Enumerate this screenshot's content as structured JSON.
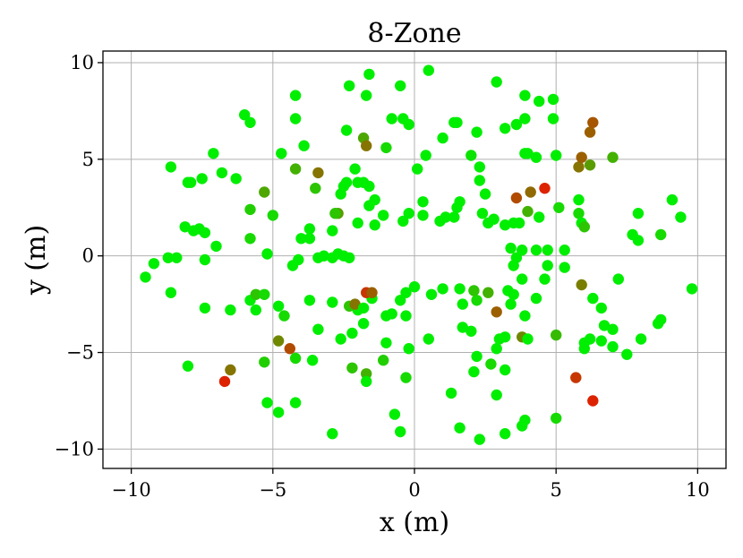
{
  "chart_data": {
    "type": "scatter",
    "title": "8-Zone",
    "xlabel": "x (m)",
    "ylabel": "y (m)",
    "xlim": [
      -11,
      11
    ],
    "ylim": [
      -11,
      10.6
    ],
    "xticks": [
      -10,
      -5,
      0,
      5,
      10
    ],
    "yticks": [
      -10,
      -5,
      0,
      5,
      10
    ],
    "xtick_labels": [
      "−10",
      "−5",
      "0",
      "5",
      "10"
    ],
    "ytick_labels": [
      "−10",
      "−5",
      "0",
      "5",
      "10"
    ],
    "grid": true,
    "color_scale": {
      "low": "#00ee00",
      "high": "#dd2200"
    },
    "points": [
      [
        -9.5,
        -1.1,
        0
      ],
      [
        -9.2,
        -0.4,
        0
      ],
      [
        -8.7,
        -0.1,
        0
      ],
      [
        -8.4,
        -0.1,
        0
      ],
      [
        -8.6,
        -1.9,
        0
      ],
      [
        -8.6,
        4.6,
        0
      ],
      [
        -8.0,
        3.8,
        0
      ],
      [
        -7.9,
        3.8,
        0
      ],
      [
        -7.5,
        4.0,
        0
      ],
      [
        -7.1,
        5.3,
        0
      ],
      [
        -6.8,
        4.3,
        0
      ],
      [
        -6.3,
        4.0,
        0
      ],
      [
        -6.0,
        7.3,
        0
      ],
      [
        -5.8,
        6.9,
        0
      ],
      [
        -8.1,
        1.5,
        0
      ],
      [
        -7.8,
        1.3,
        0
      ],
      [
        -7.6,
        1.4,
        0
      ],
      [
        -7.4,
        1.2,
        0
      ],
      [
        -7.4,
        -0.2,
        0
      ],
      [
        -7.0,
        0.5,
        0
      ],
      [
        -7.4,
        -2.7,
        0
      ],
      [
        -8.0,
        -5.7,
        0
      ],
      [
        -6.5,
        -2.8,
        0
      ],
      [
        -5.8,
        -2.3,
        0
      ],
      [
        -5.6,
        -2.0,
        0.2
      ],
      [
        -5.3,
        -2.0,
        0.1
      ],
      [
        -5.6,
        -2.8,
        0
      ],
      [
        -5.8,
        0.9,
        0.1
      ],
      [
        -5.8,
        2.4,
        0.15
      ],
      [
        -5.3,
        3.3,
        0.35
      ],
      [
        -5.0,
        2.1,
        0.1
      ],
      [
        -5.2,
        0.1,
        0
      ],
      [
        -4.8,
        -2.6,
        0
      ],
      [
        -4.6,
        -3.1,
        0.1
      ],
      [
        -4.8,
        -4.4,
        0.5
      ],
      [
        -4.4,
        -4.8,
        0.8
      ],
      [
        -5.3,
        -5.5,
        0.15
      ],
      [
        -5.2,
        -7.6,
        0
      ],
      [
        -4.8,
        -8.1,
        0
      ],
      [
        -4.2,
        -7.6,
        0
      ],
      [
        -4.2,
        -5.3,
        0.1
      ],
      [
        -3.6,
        -5.4,
        0
      ],
      [
        -3.4,
        -3.8,
        0
      ],
      [
        -3.7,
        -2.3,
        0
      ],
      [
        -4.1,
        -0.2,
        0
      ],
      [
        -4.3,
        -0.5,
        0
      ],
      [
        -4.0,
        0.9,
        0
      ],
      [
        -3.7,
        0.9,
        0
      ],
      [
        -3.7,
        1.4,
        0
      ],
      [
        -3.4,
        -0.1,
        0
      ],
      [
        -3.2,
        0.0,
        0
      ],
      [
        -3.5,
        3.5,
        0.2
      ],
      [
        -3.4,
        4.3,
        0.6
      ],
      [
        -4.2,
        4.5,
        0.3
      ],
      [
        -3.9,
        5.7,
        0
      ],
      [
        -4.2,
        7.1,
        0
      ],
      [
        -4.2,
        8.3,
        0
      ],
      [
        -4.7,
        5.3,
        0
      ],
      [
        -2.9,
        -9.2,
        0
      ],
      [
        -2.6,
        -4.3,
        0
      ],
      [
        -2.2,
        -4.0,
        0
      ],
      [
        -2.2,
        -5.8,
        0.2
      ],
      [
        -1.7,
        -6.1,
        0.3
      ],
      [
        -1.7,
        -6.5,
        0
      ],
      [
        -1.1,
        -5.4,
        0.15
      ],
      [
        -1.0,
        -4.5,
        0
      ],
      [
        -0.7,
        -8.2,
        0
      ],
      [
        -0.5,
        -9.1,
        0
      ],
      [
        -0.3,
        -6.3,
        0.1
      ],
      [
        -0.8,
        -3.0,
        0
      ],
      [
        -0.3,
        -3.1,
        0
      ],
      [
        -1.0,
        -3.1,
        0
      ],
      [
        -1.5,
        -2.2,
        0
      ],
      [
        -2.0,
        -2.8,
        0
      ],
      [
        -2.3,
        -2.6,
        0.2
      ],
      [
        -2.1,
        -2.5,
        0.6
      ],
      [
        -1.7,
        -1.9,
        0.9
      ],
      [
        -1.5,
        -1.9,
        0.7
      ],
      [
        -1.8,
        -2.7,
        0
      ],
      [
        -1.8,
        -3.5,
        0
      ],
      [
        -2.9,
        -2.4,
        0
      ],
      [
        -2.9,
        -0.1,
        0
      ],
      [
        -2.7,
        0.1,
        0
      ],
      [
        -2.5,
        0.0,
        0
      ],
      [
        -2.3,
        -0.1,
        0
      ],
      [
        -2.0,
        1.7,
        0
      ],
      [
        -1.4,
        1.6,
        0
      ],
      [
        -1.6,
        2.6,
        0
      ],
      [
        -1.1,
        2.1,
        0
      ],
      [
        -2.9,
        1.3,
        0
      ],
      [
        -2.7,
        2.2,
        0.4
      ],
      [
        -2.8,
        2.2,
        0.2
      ],
      [
        -2.6,
        3.2,
        0
      ],
      [
        -2.4,
        3.8,
        0
      ],
      [
        -2.5,
        3.6,
        0
      ],
      [
        -2.0,
        3.8,
        0
      ],
      [
        -1.8,
        3.8,
        0
      ],
      [
        -1.6,
        3.6,
        0
      ],
      [
        -2.1,
        4.5,
        0
      ],
      [
        -1.4,
        2.9,
        0
      ],
      [
        -1.8,
        6.1,
        0.35
      ],
      [
        -1.7,
        5.7,
        0.6
      ],
      [
        -1.0,
        5.6,
        0.1
      ],
      [
        -2.4,
        6.5,
        0
      ],
      [
        -1.7,
        8.3,
        0
      ],
      [
        -1.6,
        9.4,
        0
      ],
      [
        -2.3,
        8.8,
        0
      ],
      [
        -0.5,
        8.8,
        0
      ],
      [
        -0.8,
        7.1,
        0
      ],
      [
        -0.4,
        7.1,
        0
      ],
      [
        -0.2,
        6.8,
        0
      ],
      [
        -0.2,
        2.2,
        0
      ],
      [
        0.3,
        2.1,
        0
      ],
      [
        -0.4,
        1.8,
        0
      ],
      [
        0.3,
        2.8,
        0
      ],
      [
        0.1,
        4.5,
        0
      ],
      [
        0.4,
        5.2,
        0
      ],
      [
        0.5,
        9.6,
        0
      ],
      [
        0.9,
        1.8,
        0
      ],
      [
        1.1,
        2.0,
        0
      ],
      [
        1.4,
        2.0,
        0
      ],
      [
        1.5,
        2.5,
        0
      ],
      [
        1.6,
        2.8,
        0
      ],
      [
        1.4,
        6.9,
        0
      ],
      [
        1.0,
        6.1,
        0
      ],
      [
        0.0,
        -1.6,
        0
      ],
      [
        -0.3,
        -1.9,
        0
      ],
      [
        -0.5,
        -2.3,
        0
      ],
      [
        -0.2,
        -4.8,
        0
      ],
      [
        0.5,
        -4.3,
        0
      ],
      [
        0.6,
        -2.0,
        0
      ],
      [
        1.0,
        -1.7,
        0
      ],
      [
        1.6,
        -1.7,
        0
      ],
      [
        1.7,
        -2.5,
        0
      ],
      [
        1.7,
        -3.7,
        0
      ],
      [
        2.0,
        -3.9,
        0
      ],
      [
        2.2,
        -2.3,
        0.1
      ],
      [
        2.1,
        -1.8,
        0.2
      ],
      [
        2.6,
        -1.9,
        0.3
      ],
      [
        2.2,
        -5.2,
        0
      ],
      [
        2.7,
        -5.6,
        0.1
      ],
      [
        2.9,
        -4.8,
        0
      ],
      [
        2.1,
        -6.0,
        0
      ],
      [
        1.3,
        -7.1,
        0
      ],
      [
        1.6,
        -8.9,
        0
      ],
      [
        2.3,
        -9.5,
        0
      ],
      [
        2.9,
        -7.2,
        0
      ],
      [
        3.2,
        -5.9,
        0
      ],
      [
        3.0,
        -4.3,
        0
      ],
      [
        3.2,
        -4.2,
        0
      ],
      [
        2.9,
        -2.9,
        0.7
      ],
      [
        3.3,
        -1.8,
        0
      ],
      [
        3.5,
        -2.0,
        0
      ],
      [
        3.4,
        -2.5,
        0
      ],
      [
        3.5,
        -0.5,
        0
      ],
      [
        3.6,
        -0.1,
        0
      ],
      [
        3.8,
        -1.2,
        0
      ],
      [
        3.9,
        -3.1,
        0
      ],
      [
        3.8,
        -4.2,
        0.5
      ],
      [
        4.0,
        -4.3,
        0
      ],
      [
        3.9,
        -8.5,
        0
      ],
      [
        3.8,
        -8.8,
        0
      ],
      [
        3.2,
        -9.2,
        0
      ],
      [
        5.0,
        -8.4,
        0.1
      ],
      [
        5.0,
        -4.1,
        0.25
      ],
      [
        4.3,
        -2.2,
        0
      ],
      [
        4.6,
        -1.2,
        0
      ],
      [
        4.7,
        -0.5,
        0
      ],
      [
        5.3,
        -0.6,
        0
      ],
      [
        4.3,
        0.3,
        0
      ],
      [
        4.7,
        0.3,
        0
      ],
      [
        5.3,
        0.3,
        0
      ],
      [
        5.1,
        2.5,
        0.1
      ],
      [
        4.4,
        2.0,
        0
      ],
      [
        4.0,
        2.3,
        0.3
      ],
      [
        3.6,
        3.0,
        0.8
      ],
      [
        4.1,
        3.3,
        0.65
      ],
      [
        4.6,
        3.5,
        1.0
      ],
      [
        3.5,
        1.7,
        0
      ],
      [
        3.7,
        1.7,
        0
      ],
      [
        3.4,
        0.4,
        0
      ],
      [
        3.8,
        0.3,
        0
      ],
      [
        4.4,
        8.0,
        0
      ],
      [
        4.9,
        8.1,
        0
      ],
      [
        4.9,
        7.1,
        0
      ],
      [
        3.9,
        8.3,
        0
      ],
      [
        3.9,
        7.1,
        0
      ],
      [
        3.6,
        6.8,
        0
      ],
      [
        3.2,
        6.6,
        0
      ],
      [
        2.9,
        9.0,
        0
      ],
      [
        2.2,
        6.4,
        0
      ],
      [
        1.5,
        6.9,
        0
      ],
      [
        2.0,
        5.2,
        0.05
      ],
      [
        2.3,
        4.6,
        0
      ],
      [
        2.3,
        3.9,
        0
      ],
      [
        2.5,
        3.2,
        0
      ],
      [
        2.8,
        1.9,
        0
      ],
      [
        2.6,
        1.7,
        0
      ],
      [
        2.4,
        2.2,
        0
      ],
      [
        3.2,
        1.6,
        0
      ],
      [
        3.9,
        5.3,
        0
      ],
      [
        4.0,
        5.3,
        0
      ],
      [
        5.0,
        5.2,
        0
      ],
      [
        4.3,
        5.1,
        0
      ],
      [
        5.8,
        4.6,
        0.6
      ],
      [
        5.9,
        5.1,
        0.7
      ],
      [
        6.2,
        4.7,
        0.4
      ],
      [
        6.2,
        6.4,
        0.7
      ],
      [
        6.3,
        6.9,
        0.75
      ],
      [
        7.0,
        5.1,
        0.3
      ],
      [
        5.8,
        2.9,
        0
      ],
      [
        5.8,
        2.2,
        0.1
      ],
      [
        5.9,
        1.7,
        0
      ],
      [
        6.0,
        1.5,
        0.2
      ],
      [
        5.9,
        -1.5,
        0.55
      ],
      [
        6.3,
        -2.2,
        0
      ],
      [
        6.6,
        -2.7,
        0
      ],
      [
        6.2,
        -4.3,
        0
      ],
      [
        6.0,
        -4.5,
        0
      ],
      [
        6.0,
        -4.8,
        0
      ],
      [
        6.7,
        -3.6,
        0
      ],
      [
        7.0,
        -3.8,
        0
      ],
      [
        6.6,
        -4.4,
        0
      ],
      [
        7.0,
        -4.7,
        0
      ],
      [
        7.2,
        -1.2,
        0
      ],
      [
        7.7,
        1.1,
        0
      ],
      [
        7.9,
        0.8,
        0
      ],
      [
        7.9,
        2.2,
        0
      ],
      [
        8.7,
        1.1,
        0.1
      ],
      [
        9.1,
        2.9,
        0
      ],
      [
        9.4,
        2.0,
        0
      ],
      [
        9.8,
        -1.7,
        0
      ],
      [
        8.6,
        -3.5,
        0
      ],
      [
        8.7,
        -3.3,
        0
      ],
      [
        8.0,
        -4.3,
        0
      ],
      [
        7.5,
        -5.1,
        0
      ],
      [
        5.7,
        -6.3,
        0.9
      ],
      [
        6.3,
        -7.5,
        1.0
      ],
      [
        -6.5,
        -5.9,
        0.6
      ],
      [
        -6.7,
        -6.5,
        1.0
      ]
    ]
  }
}
